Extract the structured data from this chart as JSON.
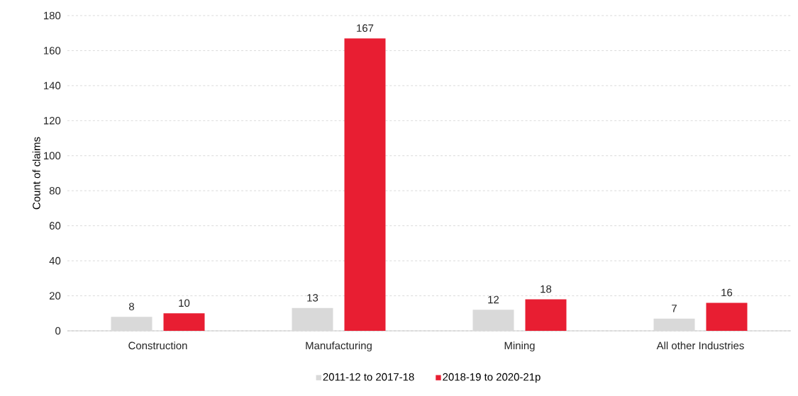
{
  "chart_data": {
    "type": "bar",
    "ylabel": "Count of claims",
    "categories": [
      "Construction",
      "Manufacturing",
      "Mining",
      "All other Industries"
    ],
    "series": [
      {
        "name": "2011-12 to 2017-18",
        "color": "#d9d9d9",
        "values": [
          8,
          13,
          12,
          7
        ]
      },
      {
        "name": "2018-19 to 2020-21p",
        "color": "#e81e32",
        "values": [
          10,
          167,
          18,
          16
        ]
      }
    ],
    "ylim": [
      0,
      180
    ],
    "yticks": [
      0,
      20,
      40,
      60,
      80,
      100,
      120,
      140,
      160,
      180
    ],
    "grid": "y",
    "legend": "bottom",
    "data_labels": true
  }
}
